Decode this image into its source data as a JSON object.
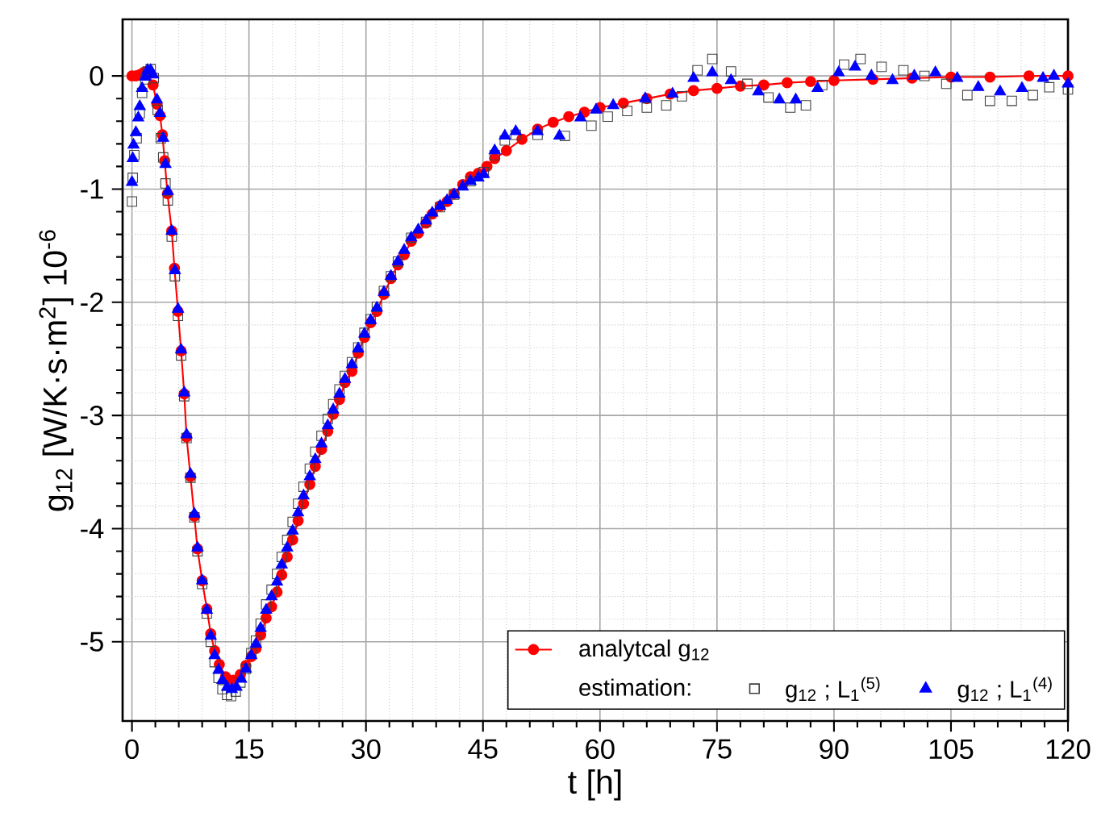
{
  "chart_data": {
    "type": "line",
    "xlabel": "t [h]",
    "ylabel": "g$_{12}$ [W/K·s·m$^{2}$] 10$^{-6}$",
    "legend_title": "estimation:",
    "xlim": [
      -1.2,
      120
    ],
    "ylim": [
      -5.7,
      0.5
    ],
    "xticks": [
      0,
      15,
      30,
      45,
      60,
      75,
      90,
      105,
      120
    ],
    "yticks": [
      -5,
      -4,
      -3,
      -2,
      -1,
      0
    ],
    "grid": true,
    "legend": "bottom right",
    "series": [
      {
        "name": "analytcal g$_{12}$",
        "marker": "circle",
        "line_style": "solid",
        "color": "#ff0000",
        "x": [
          0,
          0.5,
          1,
          1.5,
          2,
          2.7,
          3.2,
          3.6,
          3.9,
          4.2,
          4.55,
          5.1,
          5.45,
          5.9,
          6.3,
          6.7,
          7.0,
          7.5,
          8.0,
          8.4,
          9.0,
          9.6,
          10.1,
          10.6,
          11.2,
          12.0,
          13.0,
          13.9,
          14.6,
          15.3,
          15.9,
          16.5,
          17.2,
          17.9,
          18.6,
          19.2,
          19.9,
          20.6,
          21.3,
          22.0,
          22.8,
          23.5,
          24.3,
          25.1,
          25.8,
          26.6,
          27.3,
          28.2,
          29.0,
          29.8,
          30.6,
          31.4,
          32.3,
          33.2,
          34.1,
          34.9,
          35.8,
          36.7,
          37.7,
          38.5,
          39.5,
          40.4,
          41.3,
          42.4,
          43.4,
          44.4,
          45.5,
          46.5,
          48,
          50,
          52,
          54,
          56,
          58,
          60,
          63,
          66,
          69,
          72,
          75,
          78,
          81,
          84,
          87,
          90,
          95,
          100,
          105,
          110,
          115,
          120
        ],
        "values": [
          0,
          0,
          0.01,
          0.03,
          0.04,
          -0.08,
          -0.25,
          -0.35,
          -0.52,
          -0.75,
          -1.04,
          -1.37,
          -1.7,
          -2.08,
          -2.43,
          -2.81,
          -3.19,
          -3.54,
          -3.89,
          -4.18,
          -4.46,
          -4.71,
          -4.93,
          -5.08,
          -5.2,
          -5.31,
          -5.34,
          -5.29,
          -5.21,
          -5.13,
          -5.06,
          -4.94,
          -4.79,
          -4.69,
          -4.56,
          -4.41,
          -4.25,
          -4.1,
          -3.93,
          -3.78,
          -3.61,
          -3.45,
          -3.3,
          -3.14,
          -2.99,
          -2.86,
          -2.71,
          -2.61,
          -2.45,
          -2.31,
          -2.18,
          -2.08,
          -1.93,
          -1.79,
          -1.67,
          -1.58,
          -1.46,
          -1.39,
          -1.3,
          -1.22,
          -1.15,
          -1.11,
          -1.04,
          -0.96,
          -0.89,
          -0.86,
          -0.8,
          -0.73,
          -0.66,
          -0.56,
          -0.47,
          -0.41,
          -0.36,
          -0.32,
          -0.28,
          -0.24,
          -0.2,
          -0.16,
          -0.13,
          -0.11,
          -0.09,
          -0.08,
          -0.06,
          -0.05,
          -0.04,
          -0.03,
          -0.02,
          -0.01,
          -0.01,
          0,
          0
        ]
      },
      {
        "name": "g$_{12}$ ; L$_{1}$$^{(5)}$",
        "type": "scatter",
        "marker": "square",
        "color": "#404040",
        "x": [
          0,
          0.1,
          0.3,
          0.6,
          1.0,
          1.3,
          1.7,
          2.0,
          2.4,
          2.8,
          3.3,
          3.7,
          4.0,
          4.3,
          4.6,
          5.1,
          5.5,
          5.9,
          6.3,
          6.7,
          7.0,
          7.5,
          8.0,
          8.4,
          9.0,
          9.6,
          10.1,
          10.6,
          11.1,
          11.6,
          12.2,
          12.7,
          13.3,
          13.9,
          14.6,
          15.3,
          15.9,
          16.5,
          17.2,
          17.9,
          18.6,
          19.2,
          19.9,
          20.6,
          21.3,
          22.0,
          22.8,
          23.5,
          24.3,
          25.1,
          25.8,
          26.6,
          27.3,
          28.2,
          29.0,
          29.8,
          30.6,
          31.4,
          32.3,
          33.2,
          34.1,
          35.8,
          37.7,
          39.5,
          41.3,
          43.4,
          45.1,
          46.5,
          47.8,
          49.2,
          52,
          55.5,
          58.9,
          61,
          63.5,
          66,
          68.5,
          70.5,
          72.5,
          74.4,
          76.8,
          78.9,
          81.6,
          84.4,
          86.4,
          88.5,
          91.3,
          93.4,
          96.1,
          98.9,
          101.6,
          104.4,
          107.1,
          110,
          112.8,
          115.5,
          117.6,
          120
        ],
        "values": [
          -1.11,
          -0.9,
          -0.7,
          -0.55,
          -0.33,
          -0.15,
          -0.03,
          0.04,
          0.06,
          -0.02,
          -0.3,
          -0.55,
          -0.72,
          -0.95,
          -1.1,
          -1.42,
          -1.77,
          -2.12,
          -2.47,
          -2.83,
          -3.2,
          -3.55,
          -3.9,
          -4.2,
          -4.49,
          -4.75,
          -5.0,
          -5.18,
          -5.32,
          -5.42,
          -5.47,
          -5.48,
          -5.44,
          -5.36,
          -5.24,
          -5.1,
          -4.99,
          -4.84,
          -4.67,
          -4.54,
          -4.4,
          -4.25,
          -4.1,
          -3.94,
          -3.78,
          -3.63,
          -3.47,
          -3.32,
          -3.18,
          -3.03,
          -2.9,
          -2.77,
          -2.65,
          -2.53,
          -2.4,
          -2.27,
          -2.15,
          -2.04,
          -1.9,
          -1.77,
          -1.64,
          -1.43,
          -1.29,
          -1.16,
          -1.05,
          -0.93,
          -0.85,
          -0.7,
          -0.57,
          -0.52,
          -0.52,
          -0.53,
          -0.44,
          -0.36,
          -0.31,
          -0.28,
          -0.26,
          -0.18,
          0.05,
          0.15,
          0.04,
          -0.07,
          -0.19,
          -0.28,
          -0.26,
          -0.08,
          0.1,
          0.15,
          0.08,
          0.05,
          0.0,
          -0.07,
          -0.17,
          -0.22,
          -0.22,
          -0.17,
          -0.1,
          -0.12
        ]
      },
      {
        "name": "g$_{12}$ ; L$_{1}$$^{(4)}$",
        "type": "scatter",
        "marker": "triangle",
        "color": "#0000ff",
        "x": [
          0,
          0.1,
          0.2,
          0.5,
          0.8,
          1.0,
          1.3,
          1.7,
          2.0,
          2.4,
          2.7,
          3.2,
          3.6,
          4.0,
          4.3,
          4.6,
          5.1,
          5.5,
          5.9,
          6.3,
          6.7,
          7.0,
          7.5,
          8.0,
          8.4,
          9.0,
          9.6,
          10.1,
          10.6,
          11.1,
          11.6,
          12.2,
          12.8,
          13.4,
          14.0,
          14.6,
          15.3,
          15.9,
          16.5,
          17.2,
          17.9,
          18.6,
          19.2,
          19.9,
          20.6,
          21.3,
          22.0,
          22.8,
          23.5,
          24.3,
          25.1,
          25.8,
          26.6,
          27.3,
          28.2,
          29.0,
          29.8,
          30.6,
          31.4,
          32.3,
          33.2,
          34.1,
          34.9,
          35.8,
          36.7,
          37.7,
          38.5,
          39.5,
          40.4,
          41.3,
          42.4,
          43.4,
          44.4,
          45.1,
          46.5,
          47.8,
          49.2,
          52,
          54.8,
          57.5,
          59.5,
          61.7,
          65.8,
          69.3,
          72,
          74.4,
          76.8,
          80.3,
          83,
          85.1,
          87.9,
          90.6,
          92.7,
          94.8,
          97.5,
          100.3,
          103,
          105.8,
          108.5,
          111.3,
          114.1,
          116.8,
          118.2,
          120
        ],
        "values": [
          -0.94,
          -0.73,
          -0.61,
          -0.5,
          -0.37,
          -0.27,
          -0.11,
          -0.01,
          0.05,
          0.05,
          0.01,
          -0.21,
          -0.33,
          -0.55,
          -0.78,
          -1.02,
          -1.37,
          -1.72,
          -2.06,
          -2.42,
          -2.8,
          -3.17,
          -3.52,
          -3.87,
          -4.17,
          -4.46,
          -4.72,
          -4.95,
          -5.12,
          -5.25,
          -5.34,
          -5.4,
          -5.42,
          -5.4,
          -5.33,
          -5.24,
          -5.12,
          -5.02,
          -4.88,
          -4.72,
          -4.6,
          -4.47,
          -4.32,
          -4.17,
          -4.02,
          -3.86,
          -3.71,
          -3.54,
          -3.39,
          -3.25,
          -3.09,
          -2.95,
          -2.81,
          -2.68,
          -2.55,
          -2.41,
          -2.28,
          -2.16,
          -2.05,
          -1.91,
          -1.77,
          -1.64,
          -1.54,
          -1.43,
          -1.36,
          -1.28,
          -1.21,
          -1.15,
          -1.1,
          -1.05,
          -0.98,
          -0.93,
          -0.9,
          -0.87,
          -0.66,
          -0.53,
          -0.49,
          -0.49,
          -0.53,
          -0.37,
          -0.3,
          -0.26,
          -0.2,
          -0.16,
          -0.02,
          0.03,
          -0.04,
          -0.14,
          -0.21,
          -0.21,
          -0.11,
          0.03,
          0.08,
          0.0,
          -0.04,
          0.0,
          0.03,
          -0.02,
          -0.1,
          -0.14,
          -0.11,
          -0.02,
          0.0,
          -0.07
        ]
      }
    ]
  }
}
